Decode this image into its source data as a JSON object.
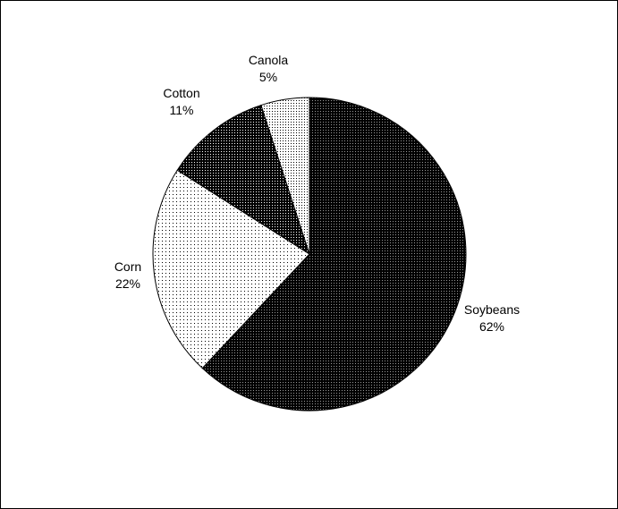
{
  "chart_data": {
    "type": "pie",
    "title": "",
    "slices": [
      {
        "label": "Soybeans",
        "percent_label": "62%",
        "value": 62,
        "pattern": "dense-dark"
      },
      {
        "label": "Corn",
        "percent_label": "22%",
        "value": 22,
        "pattern": "sparse-dots"
      },
      {
        "label": "Cotton",
        "percent_label": "11%",
        "value": 11,
        "pattern": "dark-dots"
      },
      {
        "label": "Canola",
        "percent_label": "5%",
        "value": 5,
        "pattern": "light-dots"
      }
    ],
    "start": "12 o'clock",
    "direction": "clockwise",
    "legend": "none",
    "colors": {
      "border": "#000000",
      "background": "#ffffff"
    }
  }
}
